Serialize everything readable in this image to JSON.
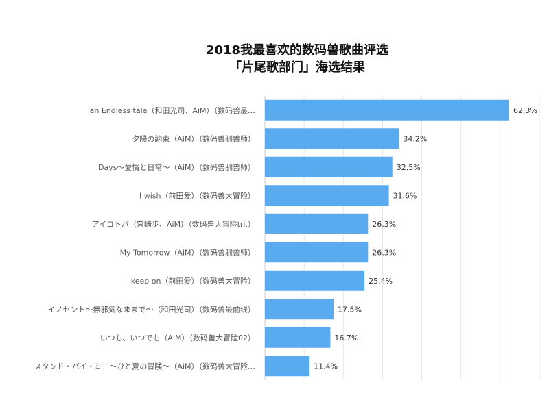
{
  "chart_data": {
    "type": "bar",
    "orientation": "horizontal",
    "title": [
      "2018我最喜欢的数码兽歌曲评选",
      "「片尾歌部门」海选结果"
    ],
    "categories": [
      "an Endless tale（和田光司、AiM）（数码兽最…",
      "夕陽の約束（AiM）（数码兽驯兽师）",
      "Days～愛情と日常～（AiM）（数码兽驯兽师）",
      "I wish（前田爱）（数码兽大冒险）",
      "アイコトバ（宫崎步、AiM）（数码兽大冒险tri.）",
      "My Tomorrow（AiM）（数码兽驯兽师）",
      "keep on（前田爱）（数码兽大冒险）",
      "イノセント～無邪気なままで～（和田光司）（数码兽最前线）",
      "いつも、いつでも（AiM）（数码兽大冒险02）",
      "スタンド・バイ・ミー～ひと夏の冒険～（AiM）（数码兽大冒险…"
    ],
    "values": [
      62.3,
      34.2,
      32.5,
      31.6,
      26.3,
      26.3,
      25.4,
      17.5,
      16.7,
      11.4
    ],
    "value_labels": [
      "62.3%",
      "34.2%",
      "32.5%",
      "31.6%",
      "26.3%",
      "26.3%",
      "25.4%",
      "17.5%",
      "16.7%",
      "11.4%"
    ],
    "xlim": [
      0,
      70
    ],
    "grid": true,
    "bar_color": "#5aaaf0"
  }
}
